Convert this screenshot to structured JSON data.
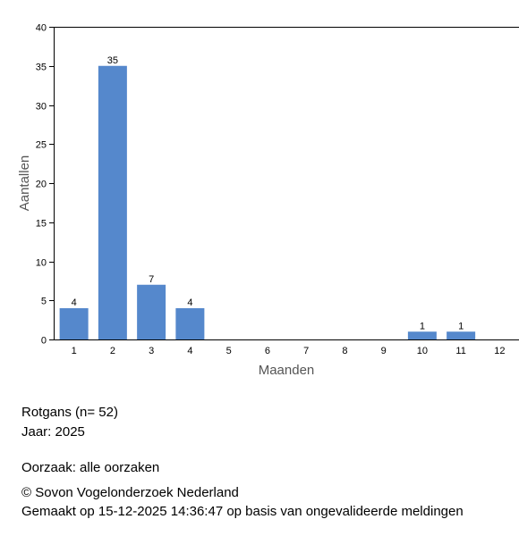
{
  "chart_data": {
    "type": "bar",
    "categories": [
      "1",
      "2",
      "3",
      "4",
      "5",
      "6",
      "7",
      "8",
      "9",
      "10",
      "11",
      "12"
    ],
    "values": [
      4,
      35,
      7,
      4,
      0,
      0,
      0,
      0,
      0,
      1,
      1,
      0
    ],
    "data_labels": [
      "4",
      "35",
      "7",
      "4",
      "",
      "",
      "",
      "",
      "",
      "1",
      "1",
      ""
    ],
    "xlabel": "Maanden",
    "ylabel": "Aantallen",
    "ylim": [
      0,
      40
    ],
    "yticks": [
      0,
      5,
      10,
      15,
      20,
      25,
      30,
      35,
      40
    ],
    "grid": false,
    "bar_color": "#5588cc"
  },
  "info": {
    "species": "Rotgans  (n= 52)",
    "year": "Jaar: 2025",
    "cause": "Oorzaak: alle oorzaken",
    "copyright": "© Sovon Vogelonderzoek Nederland",
    "generated": "Gemaakt op 15-12-2025 14:36:47 op basis van ongevalideerde meldingen"
  }
}
